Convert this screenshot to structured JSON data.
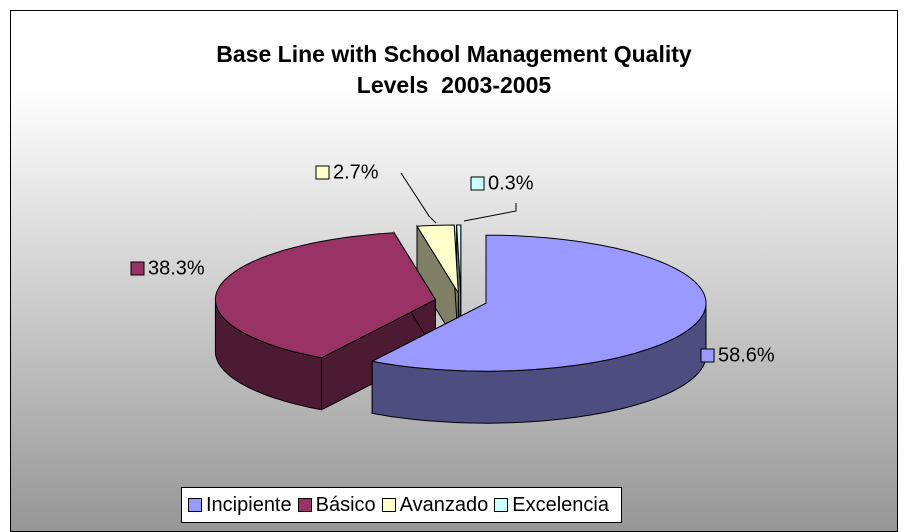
{
  "chart_data": {
    "type": "pie",
    "title": "Base Line with School Management Quality Levels  2003-2005",
    "categories": [
      "Incipiente",
      "Básico",
      "Avanzado",
      "Excelencia"
    ],
    "values": [
      58.6,
      38.3,
      2.7,
      0.3
    ],
    "value_labels": [
      "58.6%",
      "38.3%",
      "2.7%",
      "0.3%"
    ],
    "colors": [
      "#9999ff",
      "#993366",
      "#ffffcc",
      "#ccffff"
    ],
    "legend": "bottom"
  }
}
